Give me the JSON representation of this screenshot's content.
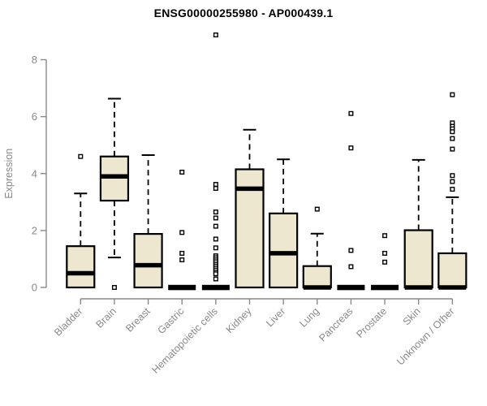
{
  "chart_data": {
    "type": "boxplot",
    "title": "ENSG00000255980 - AP000439.1",
    "ylabel": "Expression",
    "xlabel": "",
    "yticks": [
      0,
      2,
      4,
      6,
      8
    ],
    "ylim": [
      0,
      9
    ],
    "grid": false,
    "legend": "none",
    "categories": [
      "Bladder",
      "Brain",
      "Breast",
      "Gastric",
      "Hematopoietic cells",
      "Kidney",
      "Liver",
      "Lung",
      "Pancreas",
      "Prostate",
      "Skin",
      "Unknown / Other"
    ],
    "series": [
      {
        "category": "Bladder",
        "whisker_low": 0,
        "q1": 0,
        "median": 0.5,
        "q3": 1.45,
        "whisker_high": 3.3,
        "outliers": [
          4.6
        ]
      },
      {
        "category": "Brain",
        "whisker_low": 1.05,
        "q1": 3.05,
        "median": 3.9,
        "q3": 4.6,
        "whisker_high": 6.63,
        "outliers": [
          0
        ]
      },
      {
        "category": "Breast",
        "whisker_low": 0,
        "q1": 0,
        "median": 0.78,
        "q3": 1.88,
        "whisker_high": 4.65,
        "outliers": []
      },
      {
        "category": "Gastric",
        "whisker_low": 0,
        "q1": 0,
        "median": 0,
        "q3": 0,
        "whisker_high": 0,
        "outliers": [
          4.05,
          1.93,
          1.2,
          0.97
        ]
      },
      {
        "category": "Hematopoietic cells",
        "whisker_low": 0,
        "q1": 0,
        "median": 0,
        "q3": 0,
        "whisker_high": 0,
        "outliers": [
          8.87,
          3.62,
          3.48,
          2.65,
          2.44,
          2.15,
          1.7,
          1.39,
          1.11,
          1.04,
          0.97,
          0.9,
          0.82,
          0.75,
          0.68,
          0.61,
          0.54,
          0.48,
          0.3
        ]
      },
      {
        "category": "Kidney",
        "whisker_low": 0,
        "q1": 0,
        "median": 3.47,
        "q3": 4.15,
        "whisker_high": 5.54,
        "outliers": []
      },
      {
        "category": "Liver",
        "whisker_low": 0,
        "q1": 0,
        "median": 1.2,
        "q3": 2.6,
        "whisker_high": 4.5,
        "outliers": []
      },
      {
        "category": "Lung",
        "whisker_low": 0,
        "q1": 0,
        "median": 0,
        "q3": 0.75,
        "whisker_high": 1.89,
        "outliers": [
          2.75
        ]
      },
      {
        "category": "Pancreas",
        "whisker_low": 0,
        "q1": 0,
        "median": 0,
        "q3": 0,
        "whisker_high": 0,
        "outliers": [
          6.11,
          4.9,
          1.3,
          0.73
        ]
      },
      {
        "category": "Prostate",
        "whisker_low": 0,
        "q1": 0,
        "median": 0,
        "q3": 0,
        "whisker_high": 0,
        "outliers": [
          1.82,
          1.2,
          0.89
        ]
      },
      {
        "category": "Skin",
        "whisker_low": 0,
        "q1": 0,
        "median": 0,
        "q3": 2.01,
        "whisker_high": 4.48,
        "outliers": []
      },
      {
        "category": "Unknown / Other",
        "whisker_low": 0,
        "q1": 0,
        "median": 0,
        "q3": 1.2,
        "whisker_high": 3.17,
        "outliers": [
          6.77,
          5.78,
          5.66,
          5.57,
          5.47,
          5.23,
          4.86,
          3.93,
          3.72,
          3.45
        ]
      }
    ],
    "colors": {
      "box_fill": "#ede7cf",
      "box_border": "#000000",
      "median": "#000000",
      "whisker": "#000000",
      "outlier_border": "#000000",
      "outlier_fill": "#ffffff",
      "axis": "#898989",
      "tick_label": "#898989",
      "title": "#000000",
      "background": "#ffffff"
    }
  }
}
